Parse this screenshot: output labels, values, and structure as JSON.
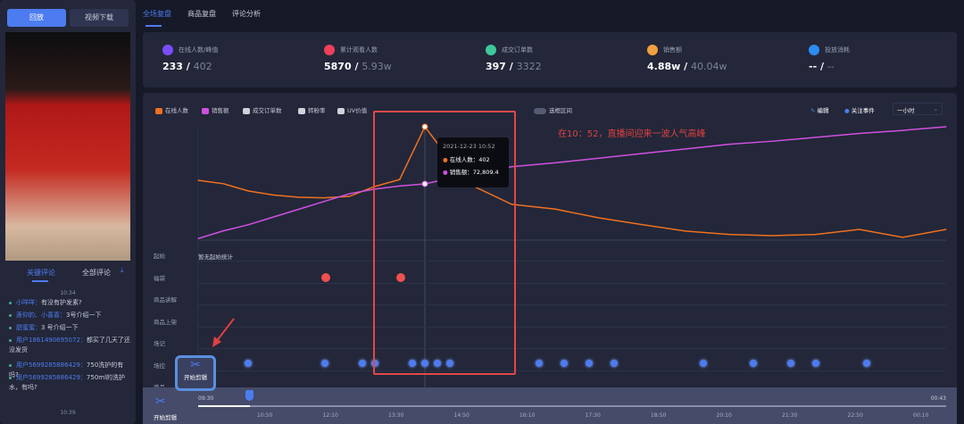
{
  "left": {
    "tab_replay": "回放",
    "tab_download": "视频下载",
    "comment_tabs": [
      "关键评论",
      "全部评论"
    ],
    "comments_time_start": "10:34",
    "comments_time_end": "10:39",
    "comments": [
      {
        "user": "小咩咩：",
        "text": "有没有护发素?"
      },
      {
        "user": "莲仰豹、小喜喜：",
        "text": "3号介绍一下"
      },
      {
        "user": "甜蜜蜜：",
        "text": "3 号介绍一下"
      },
      {
        "user": "用户1861490695072：",
        "text": "都买了几天了还没发货"
      },
      {
        "user": "用户5699285886429：",
        "text": "750洗护的有吗?"
      },
      {
        "user": "用户5699285886429：",
        "text": "750ml的洗护水，有吗?"
      }
    ]
  },
  "tabs": [
    "全场复盘",
    "商品复盘",
    "评论分析"
  ],
  "stats": [
    {
      "label": "在线人数/峰值",
      "value": "233",
      "total": "402",
      "color": "#7b4dff"
    },
    {
      "label": "累计观看人数",
      "value": "5870",
      "total": "5.93w",
      "color": "#f0405a"
    },
    {
      "label": "成交订单数",
      "value": "397",
      "total": "3322",
      "color": "#3fc79a"
    },
    {
      "label": "销售额",
      "value": "4.88w",
      "total": "40.04w",
      "color": "#f0a040"
    },
    {
      "label": "投放消耗",
      "value": "--",
      "total": "--",
      "color": "#2d8cf0"
    }
  ],
  "legend": [
    {
      "name": "在线人数",
      "color": "#f07020"
    },
    {
      "name": "销售额",
      "color": "#d050e0"
    },
    {
      "name": "成交订单数",
      "color": "#cfd2da"
    },
    {
      "name": "转粉率",
      "color": "#cfd2da"
    },
    {
      "name": "UV价值",
      "color": "#cfd2da"
    }
  ],
  "toggle_label": "选框区间",
  "edit_label": "编辑",
  "follow_label": "关注事件",
  "interval": "一小时",
  "annotation": "在10：52，直播间迎来一波人气高峰",
  "tooltip": {
    "time": "2021-12-23 10:52",
    "online_label": "在线人数：",
    "online": "402",
    "sales_label": "销售额：",
    "sales": "72,809.4"
  },
  "chart_data": {
    "type": "line",
    "series": [
      {
        "name": "在线人数",
        "color": "#f07020",
        "values": [
          212,
          200,
          174,
          160,
          152,
          150,
          155,
          190,
          215,
          402,
          200,
          127,
          110,
          79,
          55,
          32,
          20,
          16,
          20,
          38,
          10,
          38
        ]
      },
      {
        "name": "销售额",
        "color": "#d050e0",
        "values": [
          2000,
          12000,
          20000,
          30000,
          40000,
          50000,
          60000,
          66000,
          70000,
          72809,
          85000,
          95000,
          100000,
          106000,
          112000,
          118000,
          124000,
          128000,
          133000,
          138000,
          142000,
          146700
        ]
      }
    ]
  },
  "rows": [
    "起始",
    "福袋",
    "商品讲解",
    "商品上架",
    "场记",
    "场控",
    "商品"
  ],
  "no_data": "暂无起始统计",
  "clip_label": "开始剪辑",
  "timeline": {
    "start": "09:30",
    "end": "00:43",
    "ticks": [
      "10:50",
      "12:10",
      "13:30",
      "14:50",
      "16:10",
      "17:30",
      "18:50",
      "20:10",
      "21:30",
      "22:50",
      "00:10"
    ]
  }
}
